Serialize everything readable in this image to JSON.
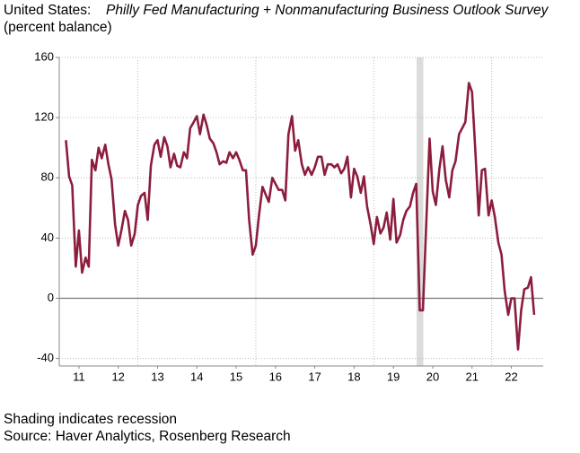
{
  "chart_data": {
    "type": "line",
    "title": "United States:",
    "title_italic": "Philly Fed Manufacturing + Nonmanufacturing Business Outlook Survey",
    "subtitle": "(percent balance)",
    "notes": [
      "Shading indicates recession",
      "Source: Haver Analytics, Rosenberg Research"
    ],
    "color": "#8c1d3d",
    "x": [
      2011.17,
      2011.25,
      2011.33,
      2011.42,
      2011.5,
      2011.58,
      2011.67,
      2011.75,
      2011.83,
      2011.92,
      2012.0,
      2012.08,
      2012.17,
      2012.25,
      2012.33,
      2012.42,
      2012.5,
      2012.58,
      2012.67,
      2012.75,
      2012.83,
      2012.92,
      2013.0,
      2013.08,
      2013.17,
      2013.25,
      2013.33,
      2013.42,
      2013.5,
      2013.58,
      2013.67,
      2013.75,
      2013.83,
      2013.92,
      2014.0,
      2014.08,
      2014.17,
      2014.25,
      2014.33,
      2014.42,
      2014.5,
      2014.58,
      2014.67,
      2014.75,
      2014.83,
      2014.92,
      2015.0,
      2015.08,
      2015.17,
      2015.25,
      2015.33,
      2015.42,
      2015.5,
      2015.58,
      2015.67,
      2015.75,
      2015.83,
      2015.92,
      2016.0,
      2016.08,
      2016.17,
      2016.25,
      2016.33,
      2016.42,
      2016.5,
      2016.58,
      2016.67,
      2016.75,
      2016.83,
      2016.92,
      2017.0,
      2017.08,
      2017.17,
      2017.25,
      2017.33,
      2017.42,
      2017.5,
      2017.58,
      2017.67,
      2017.75,
      2017.83,
      2017.92,
      2018.0,
      2018.08,
      2018.17,
      2018.25,
      2018.33,
      2018.42,
      2018.5,
      2018.58,
      2018.67,
      2018.75,
      2018.83,
      2018.92,
      2019.0,
      2019.08,
      2019.17,
      2019.25,
      2019.33,
      2019.42,
      2019.5,
      2019.58,
      2019.67,
      2019.75,
      2019.83,
      2019.92,
      2020.0,
      2020.08,
      2020.17,
      2020.25,
      2020.33,
      2020.42,
      2020.5,
      2020.58,
      2020.67,
      2020.75,
      2020.83,
      2020.92,
      2021.0,
      2021.08,
      2021.17,
      2021.25,
      2021.33,
      2021.42,
      2021.5,
      2021.58,
      2021.67,
      2021.75,
      2021.83,
      2021.92,
      2022.0,
      2022.08,
      2022.17,
      2022.25,
      2022.33,
      2022.42,
      2022.5,
      2022.58,
      2022.67,
      2022.75,
      2022.83,
      2022.92,
      2023.0,
      2023.08
    ],
    "values": [
      105,
      81,
      75,
      21,
      45,
      17,
      27,
      21,
      92,
      85,
      100,
      93,
      102,
      89,
      79,
      49,
      35,
      45,
      58,
      52,
      35,
      43,
      62,
      68,
      70,
      52,
      88,
      102,
      105,
      94,
      107,
      101,
      87,
      96,
      88,
      87,
      97,
      93,
      113,
      117,
      121,
      109,
      122,
      115,
      106,
      103,
      97,
      89,
      91,
      90,
      97,
      93,
      97,
      92,
      85,
      85,
      52,
      29,
      35,
      55,
      74,
      69,
      64,
      80,
      76,
      72,
      72,
      65,
      109,
      121,
      98,
      105,
      89,
      82,
      87,
      82,
      87,
      94,
      94,
      82,
      89,
      89,
      87,
      89,
      83,
      86,
      94,
      67,
      86,
      81,
      70,
      81,
      61,
      49,
      36,
      54,
      43,
      47,
      57,
      39,
      66,
      37,
      42,
      52,
      58,
      61,
      70,
      76,
      -8,
      -8,
      46,
      106,
      71,
      62,
      86,
      101,
      79,
      67,
      85,
      91,
      109,
      113,
      117,
      143,
      137,
      100,
      55,
      85,
      86,
      55,
      65,
      54,
      37,
      29,
      5,
      -11,
      0,
      0,
      -34,
      -8,
      6,
      7,
      14,
      -11
    ],
    "xlim": [
      2011,
      2023.31
    ],
    "ylim": [
      -45,
      160
    ],
    "yticks": [
      160,
      120,
      80,
      40,
      0,
      -40
    ],
    "xticks": [
      {
        "value": 2011.5,
        "label": "11"
      },
      {
        "value": 2012.5,
        "label": "12"
      },
      {
        "value": 2013.5,
        "label": "13"
      },
      {
        "value": 2014.5,
        "label": "14"
      },
      {
        "value": 2015.5,
        "label": "15"
      },
      {
        "value": 2016.5,
        "label": "16"
      },
      {
        "value": 2017.5,
        "label": "17"
      },
      {
        "value": 2018.5,
        "label": "18"
      },
      {
        "value": 2019.5,
        "label": "19"
      },
      {
        "value": 2020.5,
        "label": "20"
      },
      {
        "value": 2021.5,
        "label": "21"
      },
      {
        "value": 2022.5,
        "label": "22"
      }
    ],
    "xgrid": [
      2013,
      2016,
      2019,
      2022
    ],
    "recession": [
      2020.09,
      2020.26
    ],
    "grid": true
  }
}
